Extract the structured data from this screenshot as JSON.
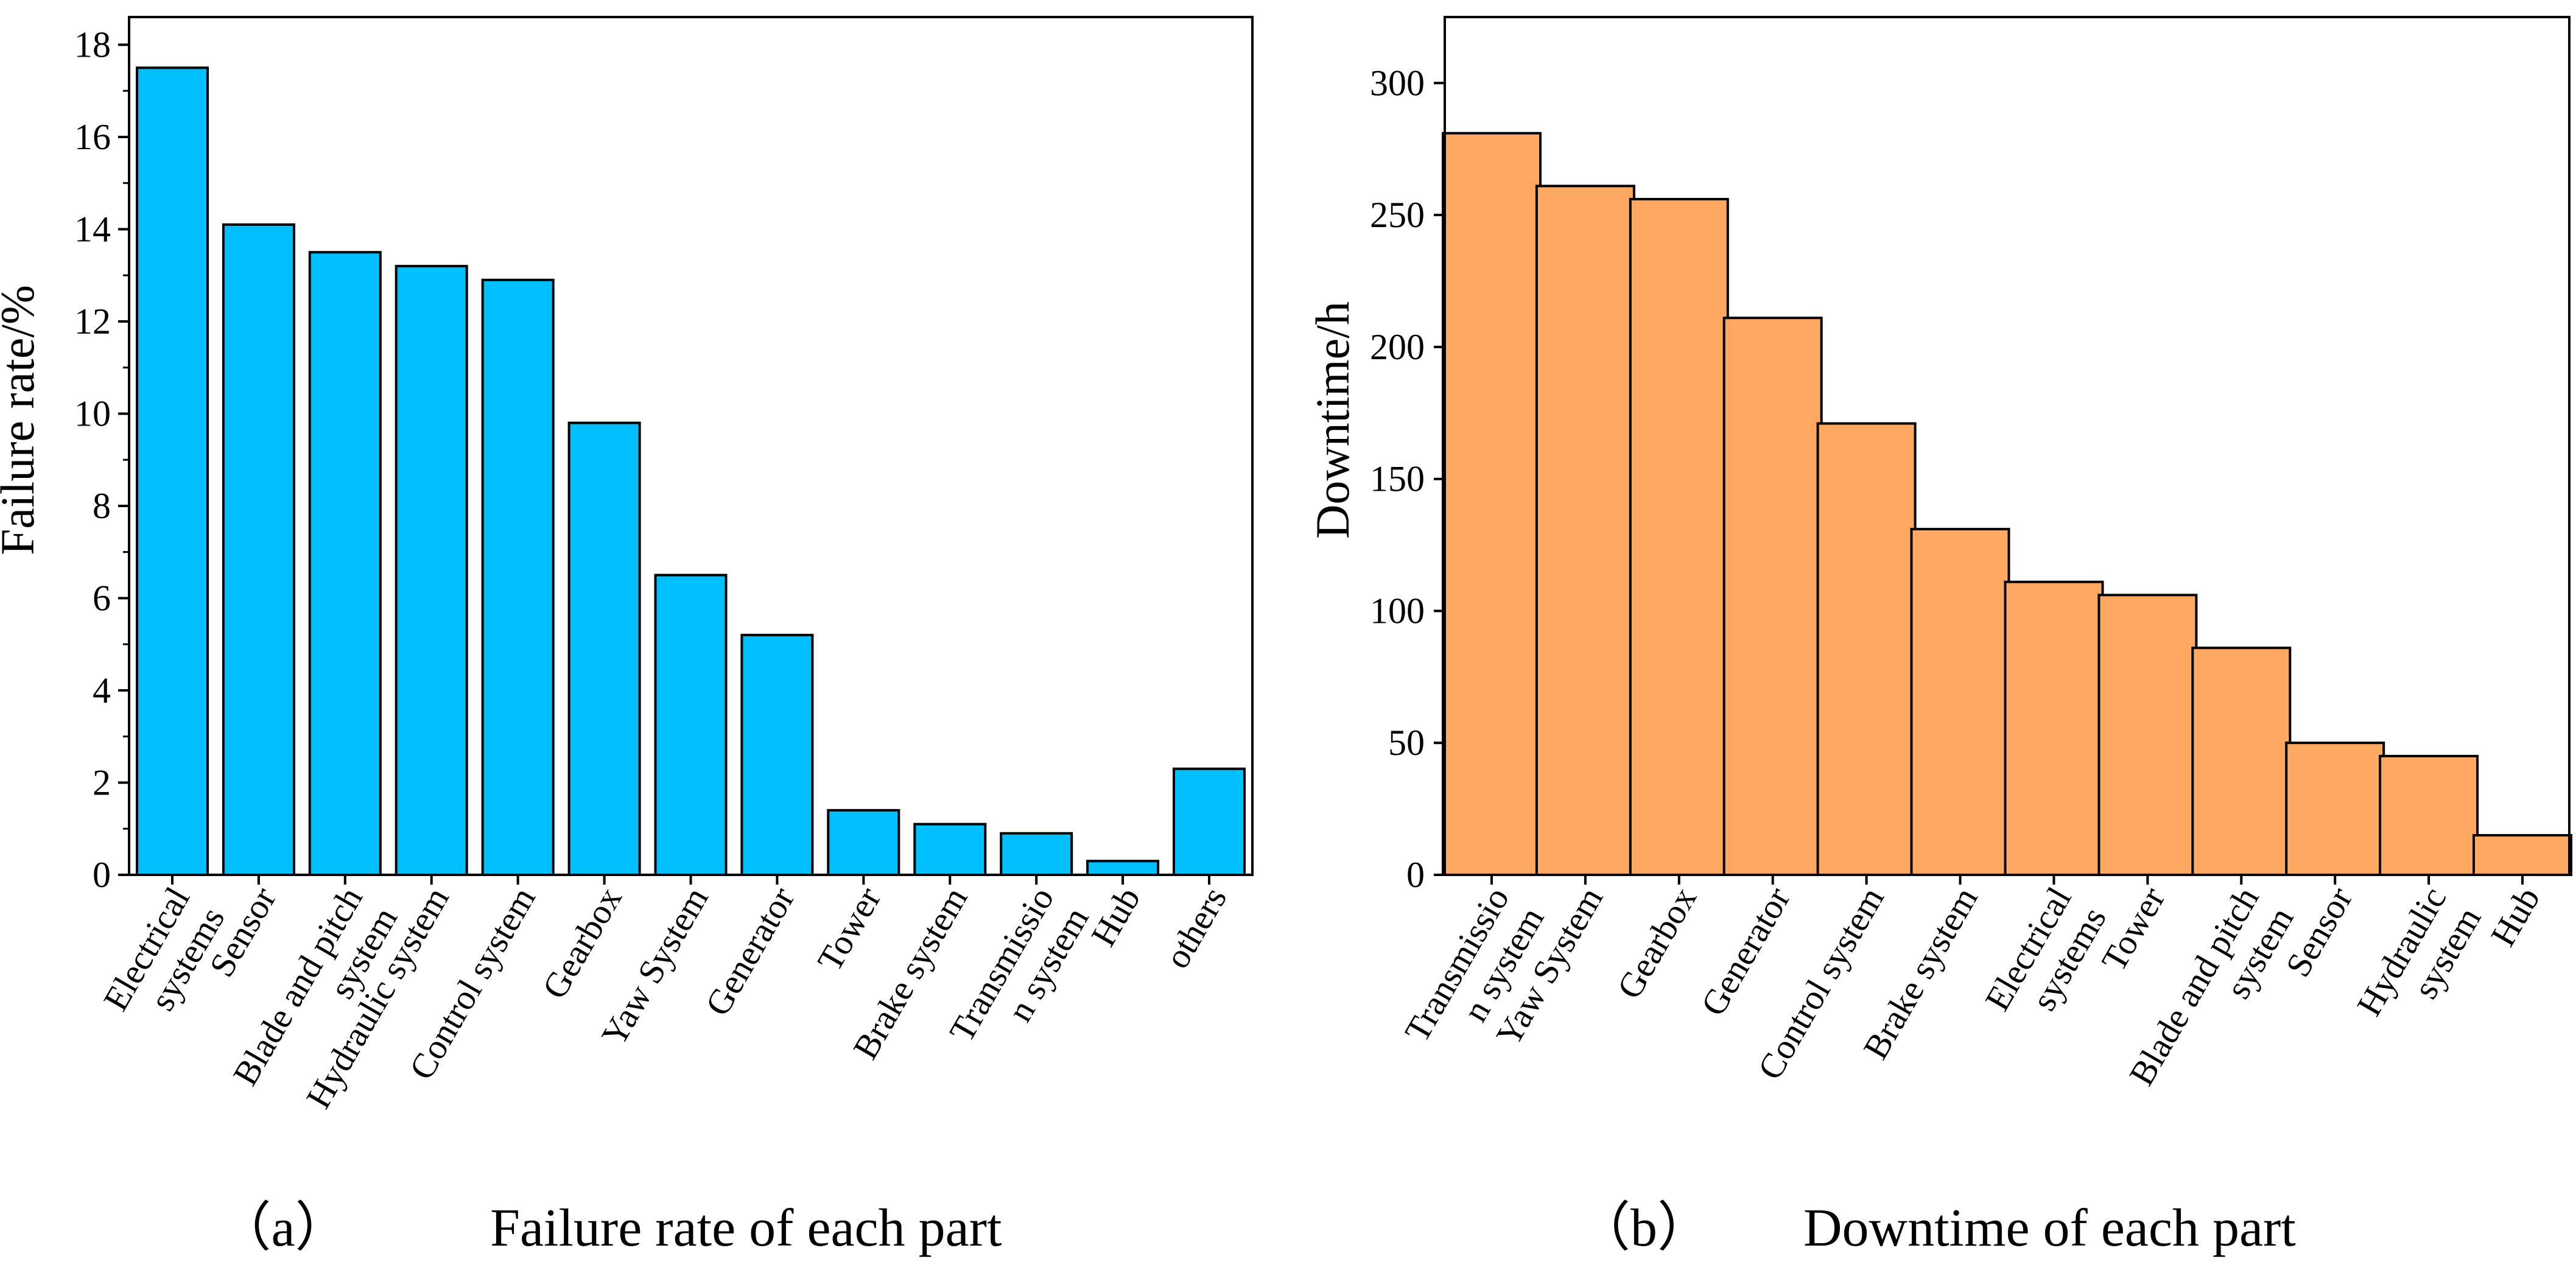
{
  "chart_data": [
    {
      "type": "bar",
      "caption_tag": "（a）",
      "caption": "Failure rate of each part",
      "xlabel": "",
      "ylabel": "Failure rate/%",
      "ylim": [
        0,
        18.6
      ],
      "yticks": [
        0,
        2,
        4,
        6,
        8,
        10,
        12,
        14,
        16,
        18
      ],
      "minor_ticks": true,
      "grid": false,
      "bar_color": "#00BFFF",
      "categories": [
        [
          "Electrical",
          "systems"
        ],
        [
          "Sensor"
        ],
        [
          "Blade and pitch",
          "system"
        ],
        [
          "Hydraulic system"
        ],
        [
          "Control system"
        ],
        [
          "Gearbox"
        ],
        [
          "Yaw System"
        ],
        [
          "Generator"
        ],
        [
          "Tower"
        ],
        [
          "Brake system"
        ],
        [
          "Transmissio",
          "n system"
        ],
        [
          "Hub"
        ],
        [
          "others"
        ]
      ],
      "values": [
        17.5,
        14.1,
        13.5,
        13.2,
        12.9,
        9.8,
        6.5,
        5.2,
        1.4,
        1.1,
        0.9,
        0.3,
        2.3
      ]
    },
    {
      "type": "bar",
      "caption_tag": "（b）",
      "caption": "Downtime of each part",
      "xlabel": "",
      "ylabel": "Downtime/h",
      "ylim": [
        0,
        325
      ],
      "yticks": [
        0,
        50,
        100,
        150,
        200,
        250,
        300
      ],
      "minor_ticks": false,
      "grid": false,
      "bar_color": "#FFA862",
      "categories": [
        [
          "Transmissio",
          "n system"
        ],
        [
          "Yaw System"
        ],
        [
          "Gearbox"
        ],
        [
          "Generator"
        ],
        [
          "Control system"
        ],
        [
          "Brake system"
        ],
        [
          "Electrical",
          "systems"
        ],
        [
          "Tower"
        ],
        [
          "Blade and pitch",
          "system"
        ],
        [
          "Sensor"
        ],
        [
          "Hydraulic",
          "system"
        ],
        [
          "Hub"
        ]
      ],
      "values": [
        281,
        261,
        256,
        211,
        171,
        131,
        111,
        106,
        86,
        50,
        45,
        15
      ]
    }
  ]
}
